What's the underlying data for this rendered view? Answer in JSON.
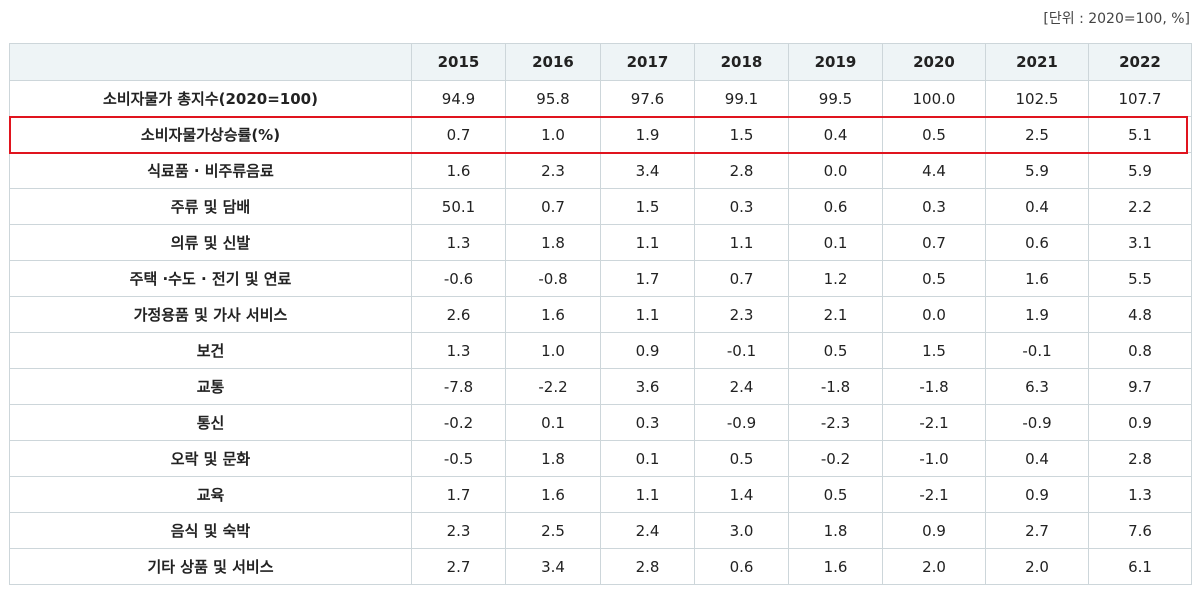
{
  "unit_note": "[단위 : 2020=100, %]",
  "table": {
    "header": [
      "2015",
      "2016",
      "2017",
      "2018",
      "2019",
      "2020",
      "2021",
      "2022"
    ],
    "rows": [
      [
        "소비자물가 총지수(2020=100)",
        "94.9",
        "95.8",
        "97.6",
        "99.1",
        "99.5",
        "100.0",
        "102.5",
        "107.7"
      ],
      [
        "소비자물가상승률(%)",
        "0.7",
        "1.0",
        "1.9",
        "1.5",
        "0.4",
        "0.5",
        "2.5",
        "5.1"
      ],
      [
        "식료품 · 비주류음료",
        "1.6",
        "2.3",
        "3.4",
        "2.8",
        "0.0",
        "4.4",
        "5.9",
        "5.9"
      ],
      [
        "주류 및 담배",
        "50.1",
        "0.7",
        "1.5",
        "0.3",
        "0.6",
        "0.3",
        "0.4",
        "2.2"
      ],
      [
        "의류 및 신발",
        "1.3",
        "1.8",
        "1.1",
        "1.1",
        "0.1",
        "0.7",
        "0.6",
        "3.1"
      ],
      [
        "주택 ·수도 · 전기 및 연료",
        "-0.6",
        "-0.8",
        "1.7",
        "0.7",
        "1.2",
        "0.5",
        "1.6",
        "5.5"
      ],
      [
        "가정용품 및 가사 서비스",
        "2.6",
        "1.6",
        "1.1",
        "2.3",
        "2.1",
        "0.0",
        "1.9",
        "4.8"
      ],
      [
        "보건",
        "1.3",
        "1.0",
        "0.9",
        "-0.1",
        "0.5",
        "1.5",
        "-0.1",
        "0.8"
      ],
      [
        "교통",
        "-7.8",
        "-2.2",
        "3.6",
        "2.4",
        "-1.8",
        "-1.8",
        "6.3",
        "9.7"
      ],
      [
        "통신",
        "-0.2",
        "0.1",
        "0.3",
        "-0.9",
        "-2.3",
        "-2.1",
        "-0.9",
        "0.9"
      ],
      [
        "오락 및 문화",
        "-0.5",
        "1.8",
        "0.1",
        "0.5",
        "-0.2",
        "-1.0",
        "0.4",
        "2.8"
      ],
      [
        "교육",
        "1.7",
        "1.6",
        "1.1",
        "1.4",
        "0.5",
        "-2.1",
        "0.9",
        "1.3"
      ],
      [
        "음식 및 숙박",
        "2.3",
        "2.5",
        "2.4",
        "3.0",
        "1.8",
        "0.9",
        "2.7",
        "7.6"
      ],
      [
        "기타 상품 및 서비스",
        "2.7",
        "3.4",
        "2.8",
        "0.6",
        "1.6",
        "2.0",
        "2.0",
        "6.1"
      ]
    ]
  }
}
